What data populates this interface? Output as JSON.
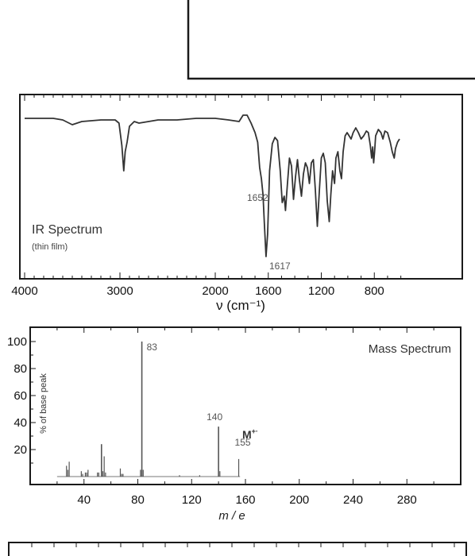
{
  "chart_data": [
    {
      "type": "line",
      "title": "IR Spectrum",
      "subtitle": "(thin film)",
      "xlabel": "ν (cm⁻¹)",
      "ylabel": "",
      "x_direction": "descending",
      "x_scale": "piecewise: 4000-2000 compressed, 2000-600 expanded",
      "xlim": [
        4000,
        600
      ],
      "ylim": [
        0,
        100
      ],
      "x_ticks": [
        "4000",
        "3000",
        "2000",
        "1600",
        "1200",
        "800"
      ],
      "grid": false,
      "annotations": [
        {
          "label": "1652",
          "x": 1652
        },
        {
          "label": "1617",
          "x": 1617
        }
      ],
      "points": [
        [
          4000,
          93
        ],
        [
          3700,
          93
        ],
        [
          3600,
          92
        ],
        [
          3500,
          89
        ],
        [
          3400,
          91
        ],
        [
          3200,
          92
        ],
        [
          3050,
          92
        ],
        [
          3010,
          90
        ],
        [
          2980,
          76
        ],
        [
          2960,
          60
        ],
        [
          2945,
          72
        ],
        [
          2925,
          78
        ],
        [
          2900,
          88
        ],
        [
          2850,
          91
        ],
        [
          2800,
          90
        ],
        [
          2600,
          92
        ],
        [
          2400,
          92
        ],
        [
          2200,
          93
        ],
        [
          2000,
          93
        ],
        [
          1900,
          92
        ],
        [
          1820,
          91
        ],
        [
          1790,
          95
        ],
        [
          1760,
          95
        ],
        [
          1730,
          90
        ],
        [
          1700,
          84
        ],
        [
          1680,
          78
        ],
        [
          1665,
          62
        ],
        [
          1652,
          55
        ],
        [
          1640,
          45
        ],
        [
          1630,
          28
        ],
        [
          1617,
          6
        ],
        [
          1605,
          20
        ],
        [
          1590,
          60
        ],
        [
          1570,
          77
        ],
        [
          1550,
          81
        ],
        [
          1530,
          79
        ],
        [
          1510,
          60
        ],
        [
          1495,
          40
        ],
        [
          1480,
          44
        ],
        [
          1470,
          35
        ],
        [
          1455,
          52
        ],
        [
          1440,
          68
        ],
        [
          1425,
          63
        ],
        [
          1410,
          42
        ],
        [
          1395,
          56
        ],
        [
          1380,
          67
        ],
        [
          1365,
          54
        ],
        [
          1350,
          44
        ],
        [
          1335,
          58
        ],
        [
          1320,
          65
        ],
        [
          1305,
          62
        ],
        [
          1290,
          52
        ],
        [
          1275,
          65
        ],
        [
          1260,
          67
        ],
        [
          1245,
          48
        ],
        [
          1230,
          25
        ],
        [
          1215,
          47
        ],
        [
          1200,
          68
        ],
        [
          1185,
          71
        ],
        [
          1170,
          65
        ],
        [
          1155,
          41
        ],
        [
          1140,
          28
        ],
        [
          1128,
          45
        ],
        [
          1115,
          60
        ],
        [
          1100,
          52
        ],
        [
          1090,
          68
        ],
        [
          1075,
          72
        ],
        [
          1060,
          60
        ],
        [
          1048,
          55
        ],
        [
          1035,
          72
        ],
        [
          1020,
          82
        ],
        [
          1005,
          84
        ],
        [
          990,
          82
        ],
        [
          975,
          80
        ],
        [
          960,
          84
        ],
        [
          940,
          87
        ],
        [
          920,
          84
        ],
        [
          900,
          80
        ],
        [
          880,
          82
        ],
        [
          860,
          85
        ],
        [
          845,
          84
        ],
        [
          830,
          76
        ],
        [
          820,
          68
        ],
        [
          812,
          75
        ],
        [
          805,
          65
        ],
        [
          798,
          72
        ],
        [
          790,
          82
        ],
        [
          770,
          86
        ],
        [
          750,
          84
        ],
        [
          735,
          80
        ],
        [
          720,
          85
        ],
        [
          700,
          84
        ],
        [
          680,
          78
        ],
        [
          665,
          72
        ],
        [
          650,
          68
        ],
        [
          640,
          74
        ],
        [
          625,
          78
        ],
        [
          610,
          80
        ]
      ]
    },
    {
      "type": "bar",
      "title": "Mass Spectrum",
      "xlabel": "m / e",
      "ylabel": "% of base peak",
      "xlim": [
        0,
        320
      ],
      "ylim": [
        0,
        100
      ],
      "x_ticks": [
        "40",
        "80",
        "120",
        "160",
        "200",
        "240",
        "280"
      ],
      "y_ticks": [
        "20",
        "40",
        "60",
        "80",
        "100"
      ],
      "grid": false,
      "molecular_ion": {
        "symbol": "M",
        "superscript": "+·",
        "mass": "155"
      },
      "peak_labels": [
        {
          "label": "83",
          "x": 83
        },
        {
          "label": "140",
          "x": 140
        },
        {
          "label": "155",
          "x": 155
        }
      ],
      "x": [
        27,
        28,
        29,
        38,
        39,
        41,
        42,
        43,
        50,
        51,
        53,
        54,
        55,
        56,
        67,
        68,
        69,
        82,
        83,
        84,
        111,
        126,
        140,
        141,
        155
      ],
      "values": [
        8,
        5,
        11,
        4,
        2,
        3,
        3,
        5,
        3,
        3,
        24,
        4,
        15,
        3,
        6,
        2,
        2,
        5,
        100,
        5,
        1,
        1,
        37,
        4,
        13
      ]
    }
  ]
}
